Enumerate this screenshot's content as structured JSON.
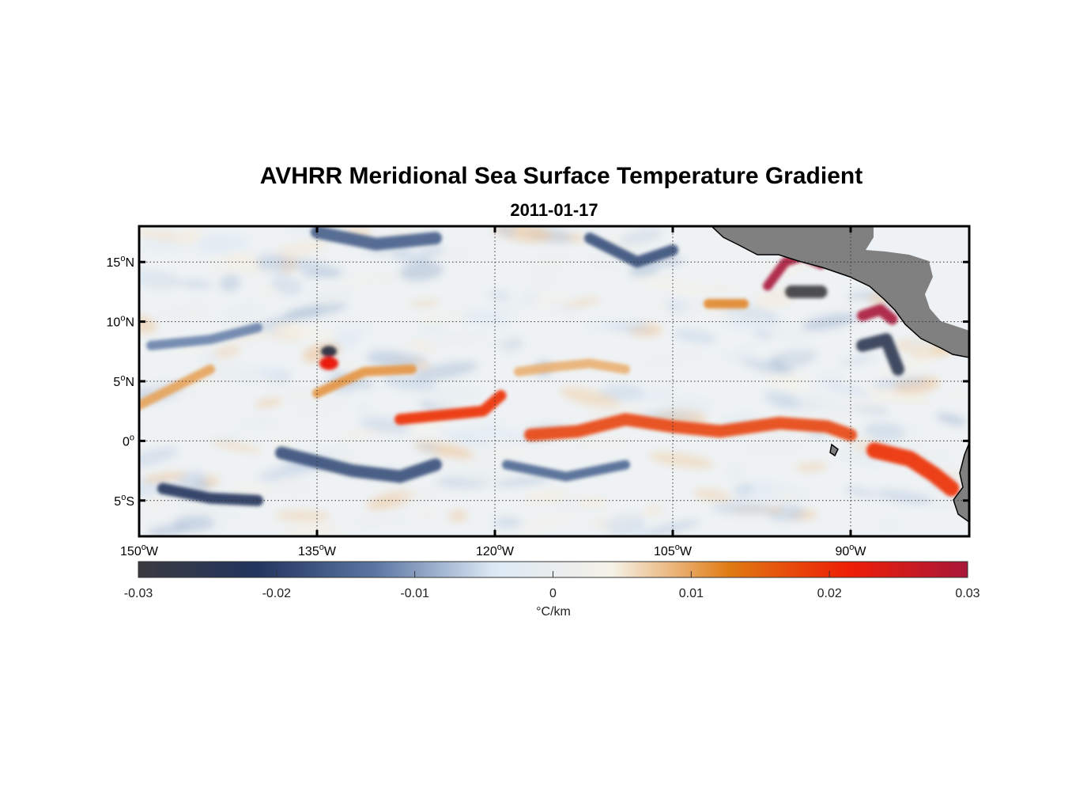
{
  "title": "AVHRR Meridional Sea Surface Temperature Gradient",
  "subtitle": "2011-01-17",
  "map": {
    "lon_range": [
      -150,
      -80
    ],
    "lat_range": [
      -8,
      18
    ],
    "lat_ticks": [
      {
        "value": 15,
        "num": "15",
        "hemi": "N"
      },
      {
        "value": 10,
        "num": "10",
        "hemi": "N"
      },
      {
        "value": 5,
        "num": "5",
        "hemi": "N"
      },
      {
        "value": 0,
        "num": "0",
        "hemi": ""
      },
      {
        "value": -5,
        "num": "5",
        "hemi": "S"
      }
    ],
    "lon_ticks": [
      {
        "value": -150,
        "num": "150",
        "hemi": "W"
      },
      {
        "value": -135,
        "num": "135",
        "hemi": "W"
      },
      {
        "value": -120,
        "num": "120",
        "hemi": "W"
      },
      {
        "value": -105,
        "num": "105",
        "hemi": "W"
      },
      {
        "value": -90,
        "num": "90",
        "hemi": "W"
      }
    ],
    "features": [
      {
        "name": "equatorial-front-west",
        "value": 0.02,
        "points": [
          [
            -128,
            1.8
          ],
          [
            -124,
            2.2
          ],
          [
            -121,
            2.5
          ],
          [
            -119.5,
            3.8
          ]
        ],
        "width": 14
      },
      {
        "name": "equatorial-front-central",
        "value": 0.018,
        "points": [
          [
            -117,
            0.5
          ],
          [
            -113,
            0.8
          ],
          [
            -109,
            1.8
          ],
          [
            -105,
            1.2
          ],
          [
            -101,
            0.8
          ],
          [
            -96,
            1.5
          ],
          [
            -92,
            1.2
          ],
          [
            -90,
            0.5
          ]
        ],
        "width": 16
      },
      {
        "name": "equatorial-front-east",
        "value": 0.02,
        "points": [
          [
            -88,
            -0.8
          ],
          [
            -85,
            -1.5
          ],
          [
            -83,
            -2.8
          ],
          [
            -81.5,
            -4
          ]
        ],
        "width": 20
      },
      {
        "name": "front-north-5n",
        "value": 0.011,
        "points": [
          [
            -135,
            4
          ],
          [
            -131,
            5.8
          ],
          [
            -127,
            6
          ]
        ],
        "width": 12
      },
      {
        "name": "front-west",
        "value": 0.01,
        "points": [
          [
            -150,
            3
          ],
          [
            -147,
            4.5
          ],
          [
            -144,
            6
          ]
        ],
        "width": 12
      },
      {
        "name": "front-mid-6n",
        "value": 0.009,
        "points": [
          [
            -118,
            5.8
          ],
          [
            -115,
            6.2
          ],
          [
            -112,
            6.5
          ],
          [
            -109,
            6
          ]
        ],
        "width": 12
      },
      {
        "name": "front-12n",
        "value": 0.012,
        "points": [
          [
            -102,
            11.5
          ],
          [
            -99,
            11.5
          ]
        ],
        "width": 12
      },
      {
        "name": "tehuantepec-warm",
        "value": 0.03,
        "points": [
          [
            -97,
            13
          ],
          [
            -95.5,
            15
          ],
          [
            -94,
            15.5
          ],
          [
            -92.5,
            14.8
          ]
        ],
        "width": 12
      },
      {
        "name": "papagayo-warm",
        "value": 0.03,
        "points": [
          [
            -89,
            10.5
          ],
          [
            -87.5,
            11
          ],
          [
            -86.5,
            10.2
          ]
        ],
        "width": 14
      },
      {
        "name": "eddy-warm-7n",
        "value": 0.022,
        "points": [
          [
            -134,
            6.5
          ]
        ],
        "width": 12
      }
    ],
    "cold_features": [
      {
        "name": "cold-south-west",
        "value": -0.022,
        "points": [
          [
            -148,
            -4
          ],
          [
            -144,
            -4.8
          ],
          [
            -140,
            -5
          ]
        ],
        "width": 14
      },
      {
        "name": "cold-south-mid",
        "value": -0.018,
        "points": [
          [
            -138,
            -1
          ],
          [
            -132,
            -2.5
          ],
          [
            -128,
            -3
          ],
          [
            -125,
            -2
          ]
        ],
        "width": 16
      },
      {
        "name": "cold-south-central",
        "value": -0.015,
        "points": [
          [
            -119,
            -2
          ],
          [
            -114,
            -3
          ],
          [
            -109,
            -2
          ]
        ],
        "width": 12
      },
      {
        "name": "cold-north-west",
        "value": -0.016,
        "points": [
          [
            -135,
            17.5
          ],
          [
            -130,
            16.5
          ],
          [
            -125,
            17
          ]
        ],
        "width": 16
      },
      {
        "name": "cold-north-east",
        "value": -0.018,
        "points": [
          [
            -112,
            17
          ],
          [
            -108,
            15
          ],
          [
            -105,
            16
          ]
        ],
        "width": 14
      },
      {
        "name": "cold-tehuantepec",
        "value": -0.03,
        "points": [
          [
            -95,
            12.5
          ],
          [
            -92.5,
            12.5
          ]
        ],
        "width": 16
      },
      {
        "name": "cold-papagayo",
        "value": -0.025,
        "points": [
          [
            -89,
            8
          ],
          [
            -87,
            8.5
          ],
          [
            -86,
            6
          ]
        ],
        "width": 16
      },
      {
        "name": "cold-eddy-7n",
        "value": -0.028,
        "points": [
          [
            -134,
            7.5
          ]
        ],
        "width": 10
      },
      {
        "name": "cold-8n-west",
        "value": -0.012,
        "points": [
          [
            -149,
            8
          ],
          [
            -144,
            8.5
          ],
          [
            -140,
            9.5
          ]
        ],
        "width": 12
      }
    ]
  },
  "colorbar": {
    "min": -0.03,
    "max": 0.03,
    "ticks": [
      {
        "value": -0.03,
        "label": "-0.03"
      },
      {
        "value": -0.02,
        "label": "-0.02"
      },
      {
        "value": -0.01,
        "label": "-0.01"
      },
      {
        "value": 0,
        "label": "0"
      },
      {
        "value": 0.01,
        "label": "0.01"
      },
      {
        "value": 0.02,
        "label": "0.02"
      },
      {
        "value": 0.03,
        "label": "0.03"
      }
    ],
    "unit_label": "°C/km",
    "colors": [
      "#3a3a3f",
      "#22355f",
      "#5b76a3",
      "#dce9f5",
      "#f6f2e8",
      "#e07a12",
      "#ee1e05",
      "#a8163a"
    ]
  },
  "land_color": "#808080"
}
